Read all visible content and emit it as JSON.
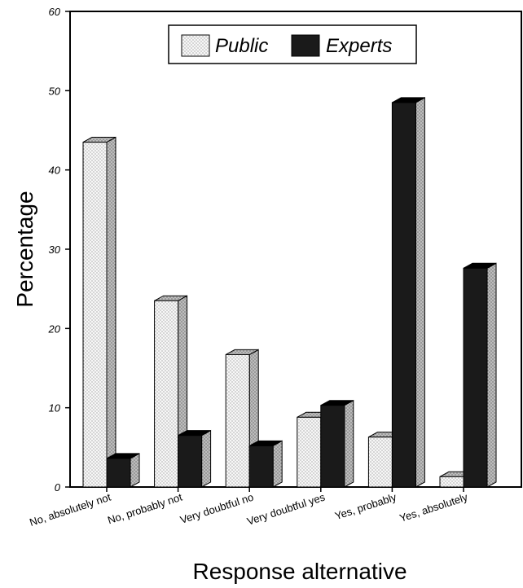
{
  "chart_data": {
    "type": "bar",
    "title": "",
    "xlabel": "Response alternative",
    "ylabel": "Percentage",
    "ylim": [
      0,
      60
    ],
    "yticks": [
      0,
      10,
      20,
      30,
      40,
      50,
      60
    ],
    "grid": false,
    "legend_position": "top-center",
    "style": "3d",
    "categories": [
      "No, absolutely not",
      "No, probably not",
      "Very doubtful no",
      "Very doubtful yes",
      "Yes, probably",
      "Yes, absolutely"
    ],
    "series": [
      {
        "name": "Public",
        "values": [
          43.5,
          23.5,
          16.7,
          8.8,
          6.3,
          1.3
        ],
        "color": "#f2f2f2",
        "pattern": "dotted"
      },
      {
        "name": "Experts",
        "values": [
          3.6,
          6.5,
          5.2,
          10.3,
          48.5,
          27.6
        ],
        "color": "#1a1a1a",
        "pattern": "solid"
      }
    ]
  }
}
